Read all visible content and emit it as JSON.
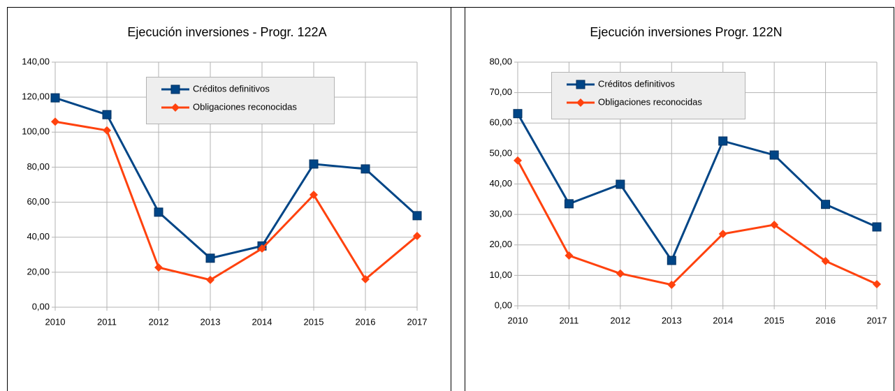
{
  "chart_data": [
    {
      "type": "line",
      "title": "Ejecución inversiones - Progr. 122A",
      "categories": [
        "2010",
        "2011",
        "2012",
        "2013",
        "2014",
        "2015",
        "2016",
        "2017"
      ],
      "series": [
        {
          "name": "Créditos definitivos",
          "color": "#004586",
          "values": [
            119.6,
            110,
            54.3,
            28,
            35,
            81.8,
            79,
            52.3
          ]
        },
        {
          "name": "Obligaciones reconocidas",
          "color": "#ff420e",
          "values": [
            106,
            101,
            22.7,
            15.6,
            33.5,
            64.2,
            16,
            40.7
          ]
        }
      ],
      "ylim": [
        0,
        140
      ],
      "yticks": [
        {
          "value": 0,
          "label": "0,00"
        },
        {
          "value": 20,
          "label": "20,00"
        },
        {
          "value": 40,
          "label": "40,00"
        },
        {
          "value": 60,
          "label": "60,00"
        },
        {
          "value": 80,
          "label": "80,00"
        },
        {
          "value": 100,
          "label": "100,00"
        },
        {
          "value": 120,
          "label": "120,00"
        },
        {
          "value": 140,
          "label": "140,00"
        }
      ],
      "grid": true
    },
    {
      "type": "line",
      "title": "Ejecución inversiones Progr. 122N",
      "categories": [
        "2010",
        "2011",
        "2012",
        "2013",
        "2014",
        "2015",
        "2016",
        "2017"
      ],
      "series": [
        {
          "name": "Créditos definitivos",
          "color": "#004586",
          "values": [
            63.1,
            33.5,
            39.9,
            14.9,
            54.1,
            49.5,
            33.3,
            25.9
          ]
        },
        {
          "name": "Obligaciones reconocidas",
          "color": "#ff420e",
          "values": [
            47.7,
            16.5,
            10.6,
            6.9,
            23.6,
            26.6,
            14.7,
            7.1
          ]
        }
      ],
      "ylim": [
        0,
        80
      ],
      "yticks": [
        {
          "value": 0,
          "label": "0,00"
        },
        {
          "value": 10,
          "label": "10,00"
        },
        {
          "value": 20,
          "label": "20,00"
        },
        {
          "value": 30,
          "label": "30,00"
        },
        {
          "value": 40,
          "label": "40,00"
        },
        {
          "value": 50,
          "label": "50,00"
        },
        {
          "value": 60,
          "label": "60,00"
        },
        {
          "value": 70,
          "label": "70,00"
        },
        {
          "value": 80,
          "label": "80,00"
        }
      ],
      "grid": true
    }
  ]
}
